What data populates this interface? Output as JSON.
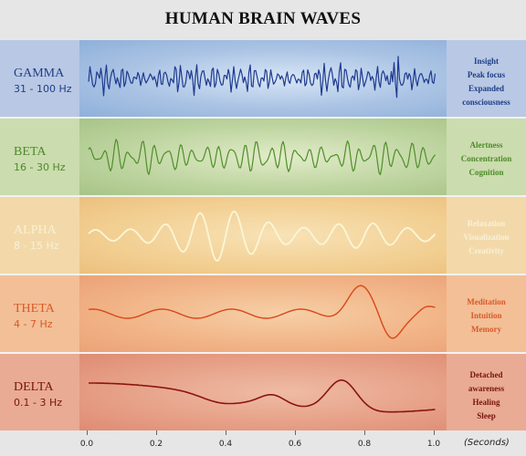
{
  "title": "HUMAN BRAIN WAVES",
  "bands": [
    {
      "name": "GAMMA",
      "range": "31 - 100 Hz",
      "traits": [
        "Insight",
        "Peak focus",
        "Expanded",
        "consciousness"
      ],
      "wave_color": "#1f3b8f"
    },
    {
      "name": "BETA",
      "range": "16 - 30 Hz",
      "traits": [
        "Alertness",
        "Concentration",
        "Cognition"
      ],
      "wave_color": "#4f8f2a"
    },
    {
      "name": "ALPHA",
      "range": "8 - 15 Hz",
      "traits": [
        "Relaxation",
        "Visualization",
        "Creativity"
      ],
      "wave_color": "#fbf6d6"
    },
    {
      "name": "THETA",
      "range": "4 - 7 Hz",
      "traits": [
        "Meditation",
        "Intuition",
        "Memory"
      ],
      "wave_color": "#d9481b"
    },
    {
      "name": "DELTA",
      "range": "0.1 - 3 Hz",
      "traits": [
        "Detached",
        "awareness",
        "Healing",
        "Sleep"
      ],
      "wave_color": "#8a1410"
    }
  ],
  "axis": {
    "ticks": [
      "0.0",
      "0.2",
      "0.4",
      "0.6",
      "0.8",
      "1.0"
    ],
    "unit": "(Seconds)"
  }
}
